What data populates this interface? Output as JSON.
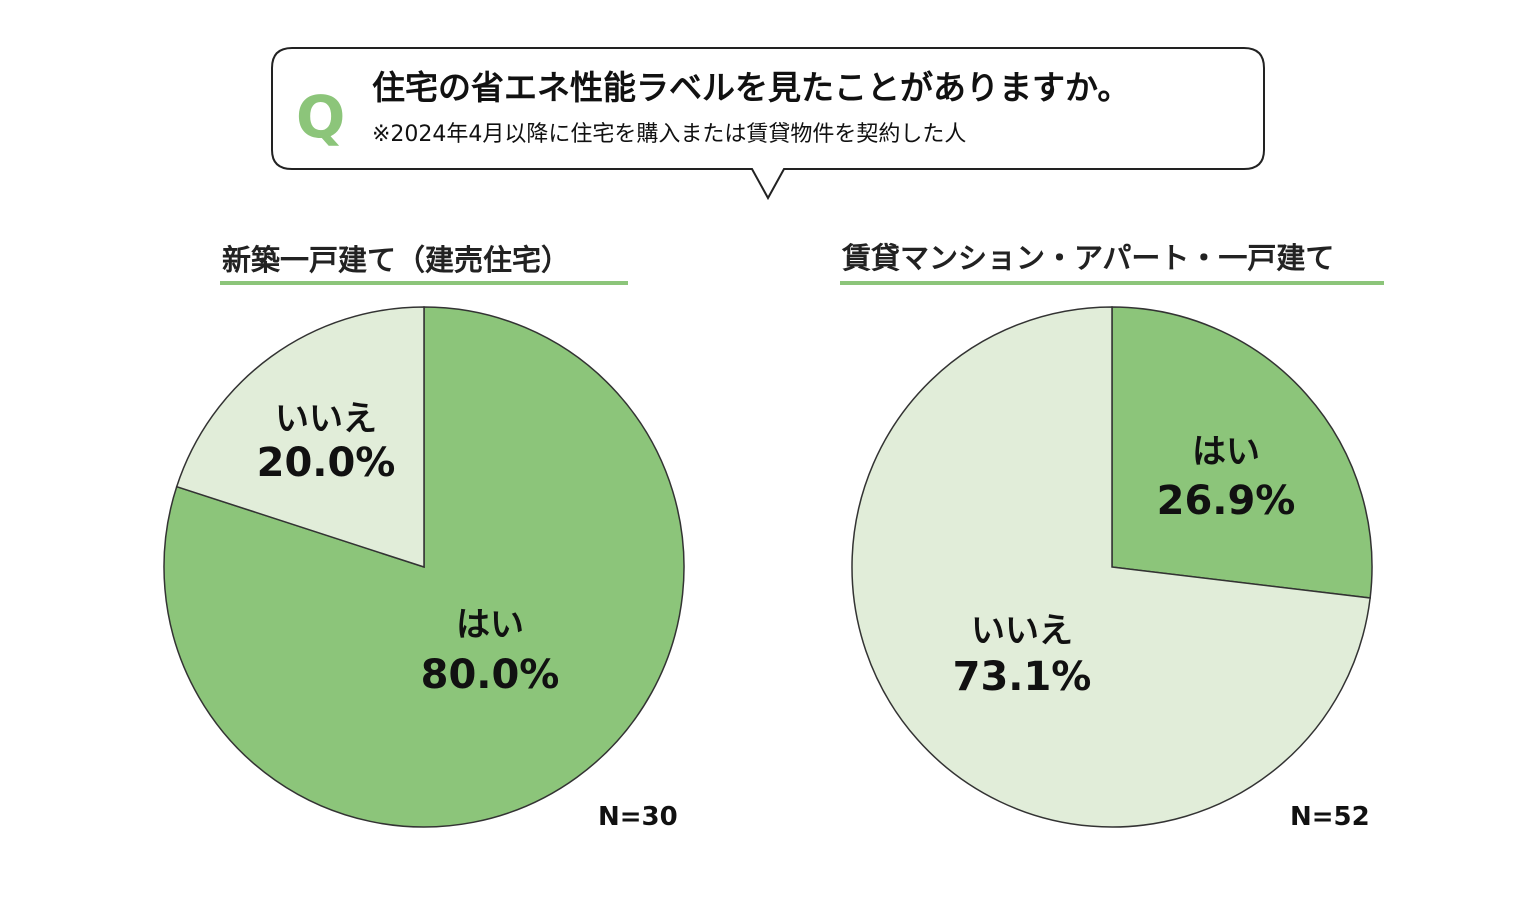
{
  "question": {
    "mark": "Q",
    "title": "住宅の省エネ性能ラベルを見たことがありますか。",
    "subtitle": "※2024年4月以降に住宅を購入または賃貸物件を契約した人"
  },
  "colors": {
    "yes": "#8cc57a",
    "no": "#e1edd9",
    "underline": "#8cc57a",
    "outline": "#333333"
  },
  "chart_data": [
    {
      "type": "pie",
      "title": "新築一戸建て（建売住宅）",
      "n_label": "N=30",
      "slices": [
        {
          "label": "はい",
          "value": 80.0,
          "value_label": "80.0%"
        },
        {
          "label": "いいえ",
          "value": 20.0,
          "value_label": "20.0%"
        }
      ]
    },
    {
      "type": "pie",
      "title": "賃貸マンション・アパート・一戸建て",
      "n_label": "N=52",
      "slices": [
        {
          "label": "はい",
          "value": 26.9,
          "value_label": "26.9%"
        },
        {
          "label": "いいえ",
          "value": 73.1,
          "value_label": "73.1%"
        }
      ]
    }
  ]
}
